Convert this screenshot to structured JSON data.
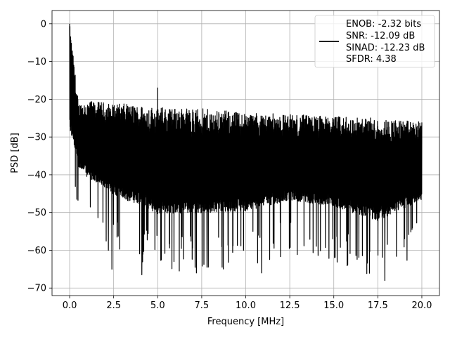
{
  "chart_data": {
    "type": "line",
    "xlabel": "Frequency [MHz]",
    "ylabel": "PSD [dB]",
    "xlim": [
      -1.0,
      21.0
    ],
    "ylim": [
      -72.0,
      3.5
    ],
    "xticks": [
      0.0,
      2.5,
      5.0,
      7.5,
      10.0,
      12.5,
      15.0,
      17.5,
      20.0
    ],
    "xtick_labels": [
      "0.0",
      "2.5",
      "5.0",
      "7.5",
      "10.0",
      "12.5",
      "15.0",
      "17.5",
      "20.0"
    ],
    "yticks": [
      0,
      -10,
      -20,
      -30,
      -40,
      -50,
      -60,
      -70
    ],
    "ytick_labels": [
      "0",
      "−10",
      "−20",
      "−30",
      "−40",
      "−50",
      "−60",
      "−70"
    ],
    "grid": true,
    "legend_position": "top-right",
    "line_color": "#000000",
    "series": [
      {
        "legend_lines": [
          "ENOB: -2.32 bits",
          "SNR: -12.09 dB",
          "SINAD: -12.23 dB",
          "SFDR: 4.38"
        ],
        "x_range": [
          0.0,
          20.0
        ],
        "envelope_x": [
          0.0,
          0.5,
          1.0,
          2.5,
          5.0,
          7.5,
          10.0,
          12.5,
          15.0,
          17.5,
          20.0
        ],
        "envelope_upper": [
          0.0,
          -21.0,
          -20.5,
          -21.0,
          -22.0,
          -22.5,
          -23.5,
          -24.0,
          -24.5,
          -25.0,
          -26.0
        ],
        "envelope_lower": [
          -44.0,
          -50.0,
          -54.0,
          -60.0,
          -66.5,
          -66.0,
          -65.0,
          -61.0,
          -63.0,
          -68.0,
          -60.0
        ],
        "notable_points": [
          {
            "x": 0.0,
            "y": 0.0
          },
          {
            "x": 2.2,
            "y": -60.0
          },
          {
            "x": 2.4,
            "y": -65.0
          },
          {
            "x": 4.1,
            "y": -66.5
          },
          {
            "x": 5.0,
            "y": -17.0
          },
          {
            "x": 7.2,
            "y": -66.0
          },
          {
            "x": 7.8,
            "y": -64.5
          },
          {
            "x": 10.9,
            "y": -66.0
          },
          {
            "x": 17.9,
            "y": -68.0
          }
        ]
      }
    ]
  }
}
